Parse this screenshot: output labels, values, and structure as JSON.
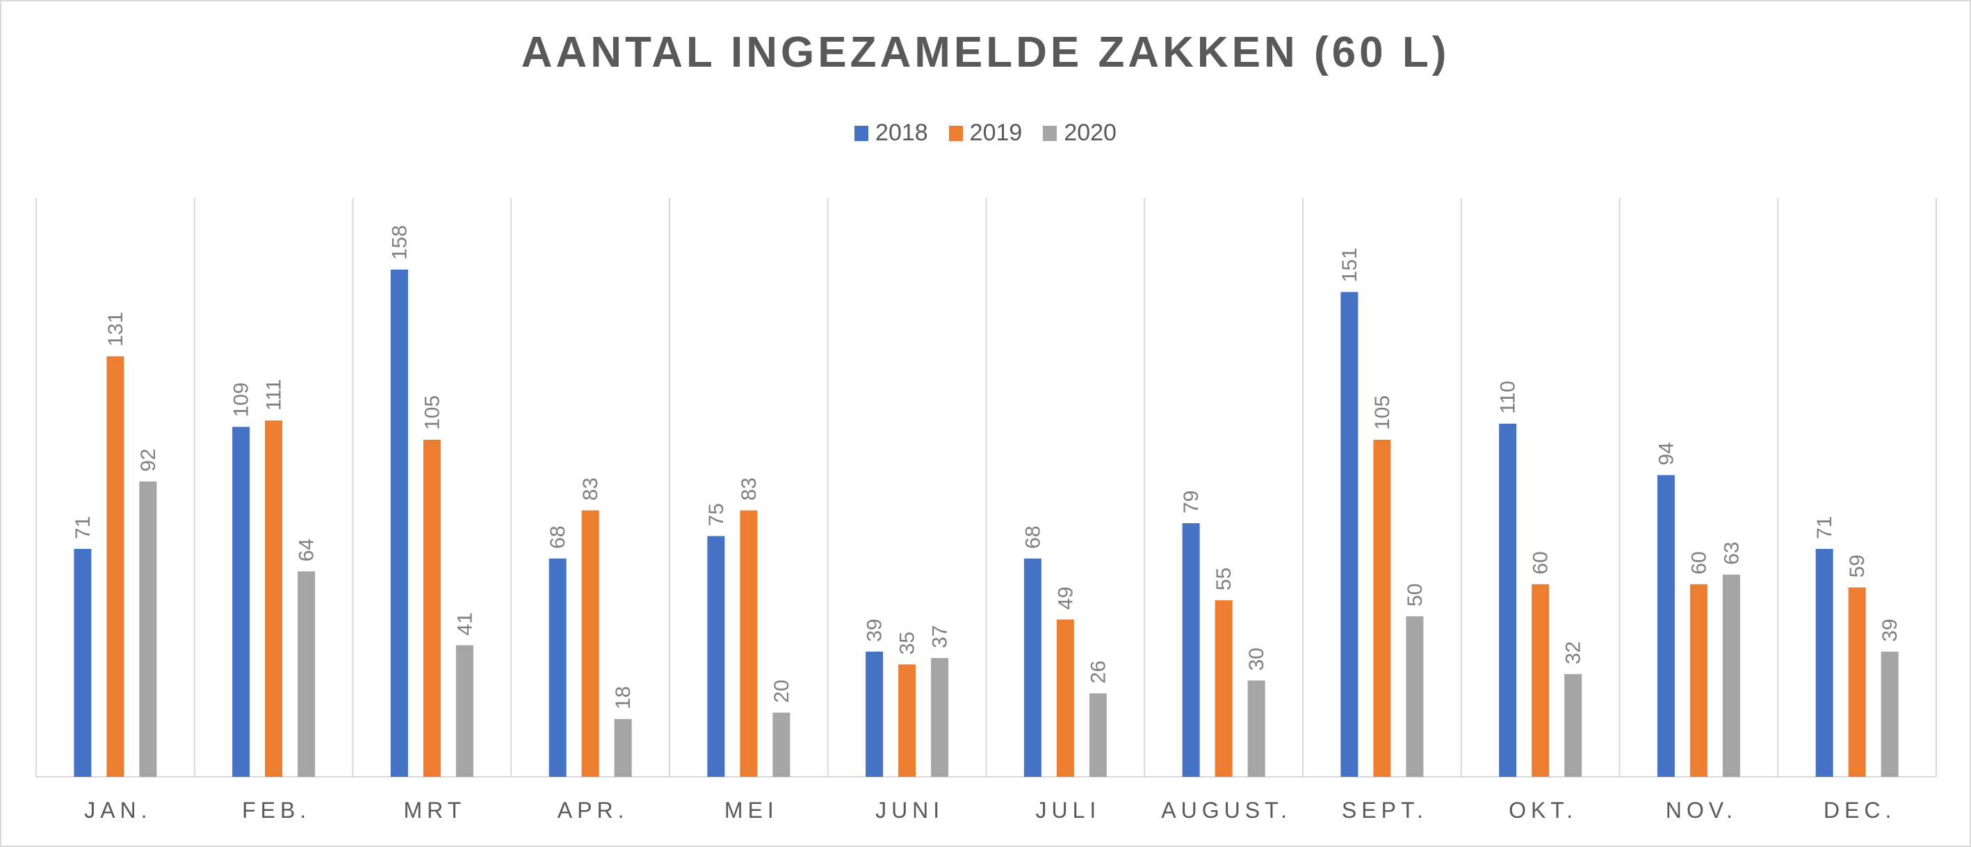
{
  "chart_data": {
    "type": "bar",
    "title": "AANTAL INGEZAMELDE ZAKKEN (60 L)",
    "xlabel": "",
    "ylabel": "",
    "ylim": [
      0,
      180
    ],
    "grid": "vertical category separators",
    "legend_position": "top",
    "categories": [
      "JAN.",
      "FEB.",
      "MRT",
      "APR.",
      "MEI",
      "JUNI",
      "JULI",
      "AUGUST.",
      "SEPT.",
      "OKT.",
      "NOV.",
      "DEC."
    ],
    "series": [
      {
        "name": "2018",
        "color": "#4472C4",
        "values": [
          71,
          109,
          158,
          68,
          75,
          39,
          68,
          79,
          151,
          110,
          94,
          71
        ]
      },
      {
        "name": "2019",
        "color": "#ED7D31",
        "values": [
          131,
          111,
          105,
          83,
          83,
          35,
          49,
          55,
          105,
          60,
          60,
          59
        ]
      },
      {
        "name": "2020",
        "color": "#A5A5A5",
        "values": [
          92,
          64,
          41,
          18,
          20,
          37,
          26,
          30,
          50,
          32,
          63,
          39
        ]
      }
    ],
    "data_labels": true
  }
}
